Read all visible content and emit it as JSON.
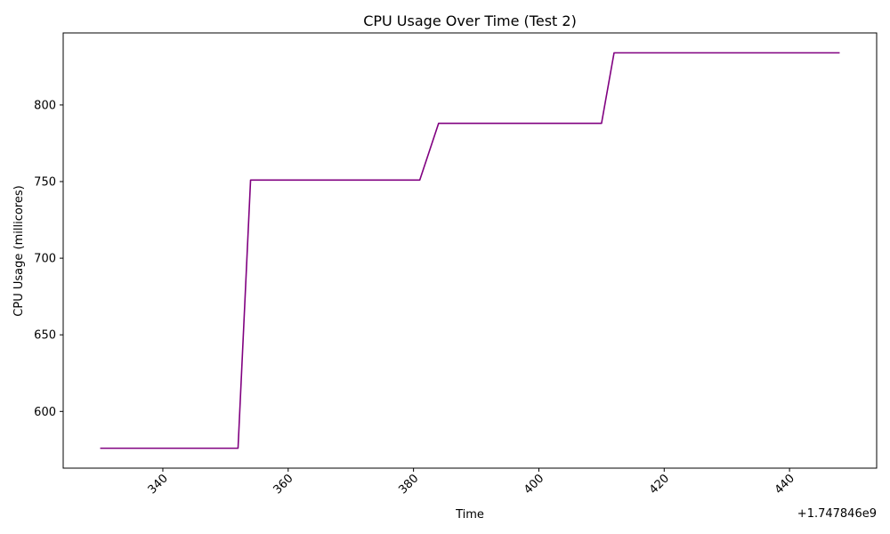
{
  "chart_data": {
    "type": "line",
    "title": "CPU Usage Over Time (Test 2)",
    "xlabel": "Time",
    "ylabel": "CPU Usage (millicores)",
    "x_offset_label": "+1.747846e9",
    "xlim": [
      324.1,
      453.9
    ],
    "ylim": [
      563.0,
      847.0
    ],
    "x_ticks": [
      340,
      360,
      380,
      400,
      420,
      440
    ],
    "y_ticks": [
      600,
      650,
      700,
      750,
      800
    ],
    "grid": false,
    "series": [
      {
        "color": "#800080",
        "x": [
          330,
          352,
          354,
          381,
          384,
          410,
          412,
          448
        ],
        "y": [
          576,
          576,
          751,
          751,
          788,
          788,
          834,
          834
        ]
      }
    ]
  }
}
